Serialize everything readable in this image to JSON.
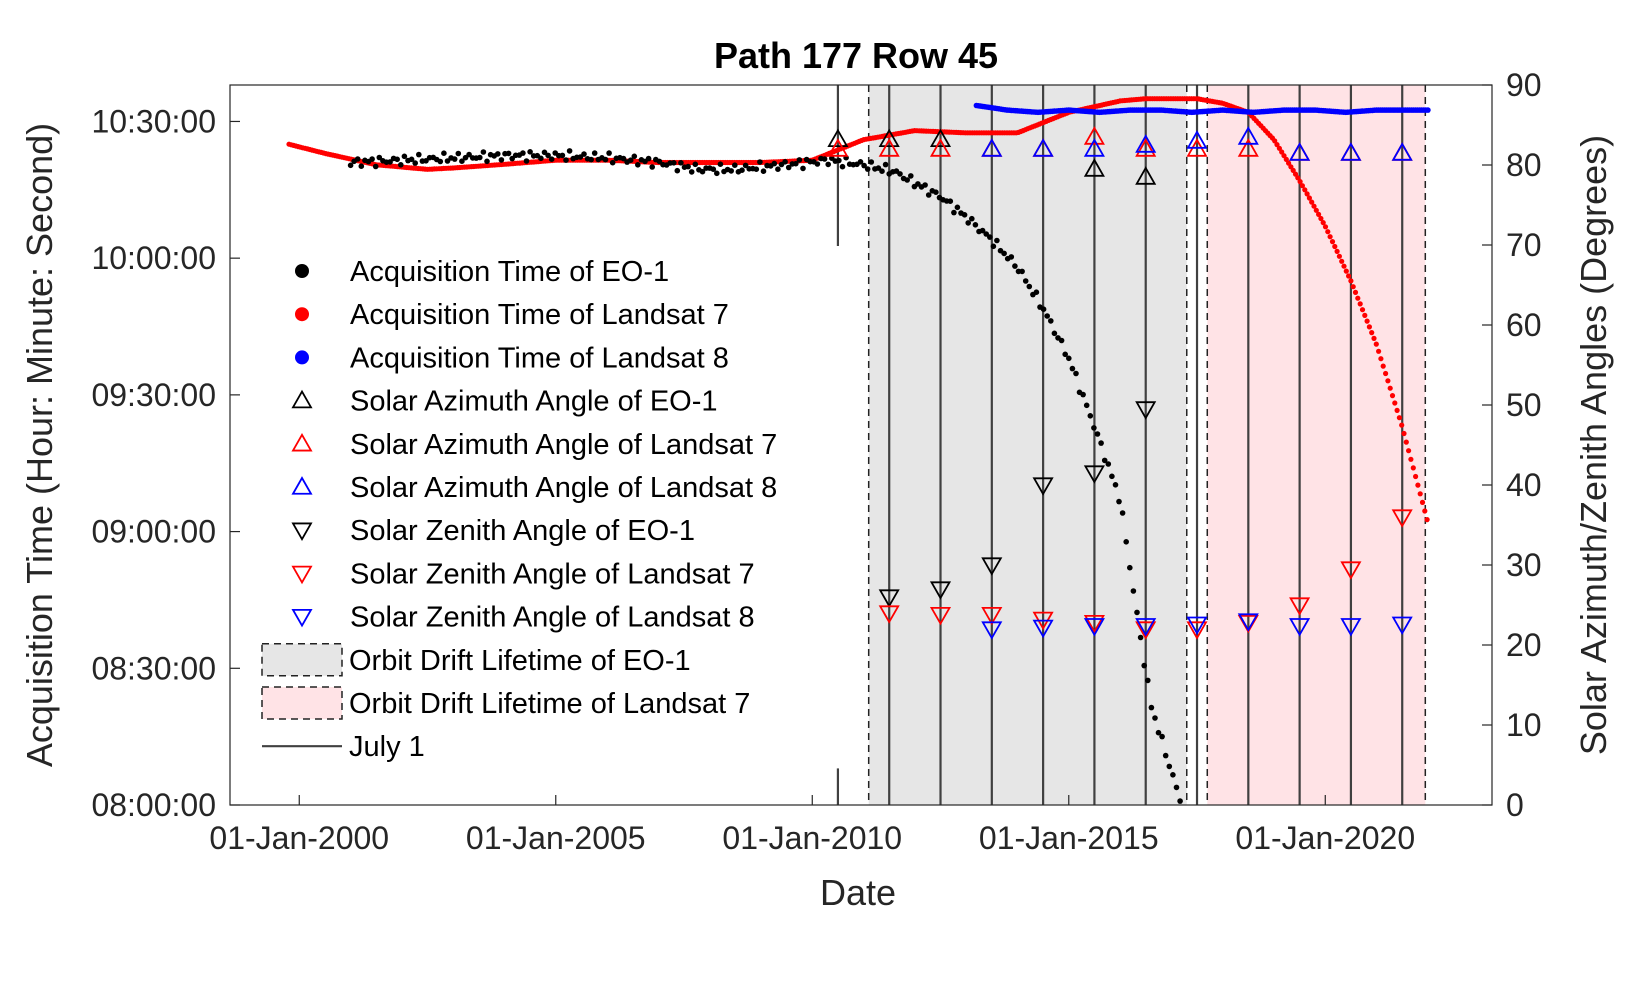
{
  "chart_data": {
    "type": "scatter",
    "title": "Path 177 Row 45",
    "xlabel": "Date",
    "ylabel_left": "Acquisition Time (Hour: Minute: Second)",
    "ylabel_right": "Solar Azimuth/Zenith Angles (Degrees)",
    "x_range_years": [
      1998.65,
      2023.25
    ],
    "left_ylim_minutes": [
      480,
      638
    ],
    "right_ylim_degrees": [
      0,
      90
    ],
    "x_tick_labels": [
      "01-Jan-2000",
      "01-Jan-2005",
      "01-Jan-2010",
      "01-Jan-2015",
      "01-Jan-2020"
    ],
    "x_tick_years": [
      2000,
      2005,
      2010,
      2015,
      2020
    ],
    "left_tick_labels": [
      "08:00:00",
      "08:30:00",
      "09:00:00",
      "09:30:00",
      "10:00:00",
      "10:30:00"
    ],
    "left_tick_minutes": [
      480,
      510,
      540,
      570,
      600,
      630
    ],
    "right_tick_values": [
      0,
      10,
      20,
      30,
      40,
      50,
      60,
      70,
      80,
      90
    ],
    "grid": false,
    "legend_placement": "middle-left",
    "colors": {
      "eo1": "#000000",
      "landsat7": "#ff0000",
      "landsat8": "#0000ff",
      "eo1_band": "#e6e6e6",
      "landsat7_band": "#ffe3e6",
      "july_line": "#404040"
    },
    "legend": [
      {
        "label": "Acquisition Time of EO-1",
        "marker": "dot",
        "color": "#000000"
      },
      {
        "label": "Acquisition Time of Landsat 7",
        "marker": "dot",
        "color": "#ff0000"
      },
      {
        "label": "Acquisition Time of Landsat 8",
        "marker": "dot",
        "color": "#0000ff"
      },
      {
        "label": "Solar Azimuth Angle of EO-1",
        "marker": "triangle-up",
        "color": "#000000"
      },
      {
        "label": "Solar Azimuth Angle of Landsat 7",
        "marker": "triangle-up",
        "color": "#ff0000"
      },
      {
        "label": "Solar Azimuth Angle of Landsat 8",
        "marker": "triangle-up",
        "color": "#0000ff"
      },
      {
        "label": "Solar Zenith Angle of EO-1",
        "marker": "triangle-down",
        "color": "#000000"
      },
      {
        "label": "Solar Zenith Angle of Landsat 7",
        "marker": "triangle-down",
        "color": "#ff0000"
      },
      {
        "label": "Solar Zenith Angle of Landsat 8",
        "marker": "triangle-down",
        "color": "#0000ff"
      },
      {
        "label": "Orbit Drift Lifetime of EO-1",
        "marker": "band",
        "color": "#e6e6e6"
      },
      {
        "label": "Orbit Drift Lifetime of Landsat 7",
        "marker": "band",
        "color": "#ffe3e6"
      },
      {
        "label": "July 1",
        "marker": "line",
        "color": "#404040"
      }
    ],
    "bands": [
      {
        "name": "Orbit Drift Lifetime of EO-1",
        "x0": 2011.1,
        "x1": 2017.3,
        "color": "#e6e6e6"
      },
      {
        "name": "Orbit Drift Lifetime of Landsat 7",
        "x0": 2017.7,
        "x1": 2021.95,
        "color": "#ffe3e6"
      }
    ],
    "july_lines": [
      2010.5,
      2011.5,
      2012.5,
      2013.5,
      2014.5,
      2015.5,
      2016.5,
      2017.5,
      2018.5,
      2019.5,
      2020.5,
      2021.5
    ],
    "acq_time_landsat7_curve": {
      "x": [
        1999.8,
        2000.5,
        2001.5,
        2002.5,
        2003,
        2004,
        2005,
        2006,
        2007,
        2008,
        2009,
        2010,
        2011,
        2012,
        2013,
        2014,
        2015,
        2016,
        2016.5,
        2017,
        2017.5,
        2018,
        2018.5,
        2019,
        2019.5,
        2020,
        2020.5,
        2021,
        2021.5,
        2022
      ],
      "y_minutes": [
        625,
        623,
        620.5,
        619.5,
        619.8,
        620.6,
        621.5,
        621.5,
        621,
        621,
        621,
        621.5,
        626,
        628,
        627.5,
        627.5,
        632,
        634.5,
        635,
        635,
        635,
        634,
        632,
        626,
        617,
        607,
        595,
        581,
        563,
        542
      ]
    },
    "acq_time_landsat8_curve": {
      "x": [
        2013.2,
        2013.8,
        2014.4,
        2015,
        2015.6,
        2016.2,
        2016.8,
        2017.4,
        2018,
        2018.6,
        2019.2,
        2019.8,
        2020.4,
        2021,
        2021.6,
        2022
      ],
      "y_minutes": [
        633.5,
        632.5,
        632,
        632.5,
        632,
        632.5,
        632.5,
        632,
        632.5,
        632,
        632.5,
        632.5,
        632,
        632.5,
        632.5,
        632.5
      ]
    },
    "acq_time_eo1_curve": {
      "x": [
        2001,
        2002,
        2003,
        2004,
        2005,
        2006,
        2007,
        2007.8,
        2008.5,
        2009.5,
        2010.3,
        2011,
        2011.6,
        2012,
        2012.5,
        2013,
        2013.5,
        2014,
        2014.5,
        2015,
        2015.5,
        2016,
        2016.3,
        2016.6,
        2016.9,
        2017.2
      ],
      "y_minutes": [
        621,
        621.5,
        622,
        622.5,
        622.5,
        622,
        621,
        619.5,
        619.5,
        620.5,
        621.5,
        620.5,
        619,
        616.5,
        613.5,
        609,
        604,
        598,
        589,
        578,
        563,
        547,
        524,
        502,
        491,
        480
      ]
    },
    "solar_azimuth_eo1": {
      "x": [
        2010.5,
        2011.5,
        2012.5,
        2015.5,
        2016.5
      ],
      "y_degrees": [
        83.2,
        83.2,
        83.2,
        79.5,
        78.5
      ]
    },
    "solar_azimuth_landsat7": {
      "x": [
        2010.5,
        2011.5,
        2012.5,
        2013.5,
        2014.5,
        2015.5,
        2016.5,
        2017.5,
        2018.5,
        2019.5,
        2020.5,
        2021.5
      ],
      "y_degrees": [
        82,
        82,
        82,
        82,
        82,
        83.5,
        82,
        82,
        82,
        81.5,
        81.5,
        81.5
      ]
    },
    "solar_azimuth_landsat8": {
      "x": [
        2013.5,
        2014.5,
        2015.5,
        2016.5,
        2017.5,
        2018.5,
        2019.5,
        2020.5,
        2021.5
      ],
      "y_degrees": [
        82,
        82,
        82,
        82.5,
        83,
        83.5,
        81.5,
        81.5,
        81.5
      ]
    },
    "solar_zenith_eo1": {
      "x": [
        2010.5,
        2011.5,
        2012.5,
        2013.5,
        2014.5,
        2015.5,
        2016.5
      ],
      "y_degrees": [
        25.5,
        26,
        27,
        30,
        40,
        41.5,
        49.5
      ]
    },
    "solar_zenith_landsat7": {
      "x": [
        2010.5,
        2011.5,
        2012.5,
        2013.5,
        2014.5,
        2015.5,
        2016.5,
        2017.5,
        2018.5,
        2019.5,
        2020.5,
        2021.5
      ],
      "y_degrees": [
        24,
        24,
        23.8,
        23.8,
        23.2,
        22.8,
        22,
        22,
        22.8,
        25,
        29.5,
        36
      ]
    },
    "solar_zenith_landsat8": {
      "x": [
        2013.5,
        2014.5,
        2015.5,
        2016.5,
        2017.5,
        2018.5,
        2019.5,
        2020.5,
        2021.5
      ],
      "y_degrees": [
        22,
        22.2,
        22.4,
        22.4,
        22.6,
        23,
        22.4,
        22.4,
        22.6
      ]
    }
  }
}
